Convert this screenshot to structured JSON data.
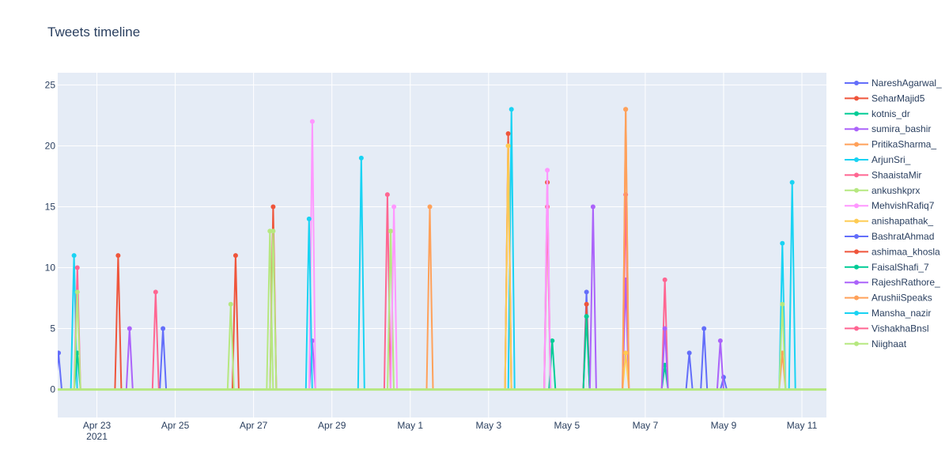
{
  "chart_data": {
    "type": "line",
    "title": "Tweets timeline",
    "xlabel": "",
    "ylabel": "",
    "x_axis": {
      "type": "date",
      "range": [
        "2021-04-22",
        "2021-05-11 15:00"
      ],
      "ticks": [
        {
          "date": "2021-04-23",
          "label": "Apr 23",
          "sublabel": "2021"
        },
        {
          "date": "2021-04-25",
          "label": "Apr 25"
        },
        {
          "date": "2021-04-27",
          "label": "Apr 27"
        },
        {
          "date": "2021-04-29",
          "label": "Apr 29"
        },
        {
          "date": "2021-05-01",
          "label": "May 1"
        },
        {
          "date": "2021-05-03",
          "label": "May 3"
        },
        {
          "date": "2021-05-05",
          "label": "May 5"
        },
        {
          "date": "2021-05-07",
          "label": "May 7"
        },
        {
          "date": "2021-05-09",
          "label": "May 9"
        },
        {
          "date": "2021-05-11",
          "label": "May 11"
        }
      ]
    },
    "y_axis": {
      "range": [
        -2.3,
        26
      ],
      "ticks": [
        0,
        5,
        10,
        15,
        20,
        25
      ]
    },
    "grid": true,
    "legend": "right",
    "series": [
      {
        "name": "NareshAgarwal_",
        "color": "#636efa",
        "peaks": [
          [
            "2021-04-22 00:30",
            3
          ],
          [
            "2021-04-24 16:30",
            5
          ],
          [
            "2021-05-08 03:00",
            3
          ],
          [
            "2021-05-09 00:00",
            1
          ]
        ]
      },
      {
        "name": "SeharMajid5",
        "color": "#ef553b",
        "peaks": [
          [
            "2021-04-23 13:00",
            11
          ],
          [
            "2021-04-26 13:00",
            11
          ],
          [
            "2021-05-03 12:00",
            21
          ],
          [
            "2021-05-04 12:00",
            17
          ]
        ]
      },
      {
        "name": "kotnis_dr",
        "color": "#00cc96",
        "peaks": [
          [
            "2021-05-04 15:00",
            4
          ],
          [
            "2021-05-07 12:00",
            2
          ]
        ]
      },
      {
        "name": "sumira_bashir",
        "color": "#ab63fa",
        "peaks": [
          [
            "2021-04-23 20:00",
            5
          ],
          [
            "2021-04-28 12:00",
            4
          ],
          [
            "2021-05-06 12:00",
            9
          ],
          [
            "2021-05-08 22:00",
            4
          ]
        ]
      },
      {
        "name": "PritikaSharma_",
        "color": "#ffa15a",
        "peaks": [
          [
            "2021-05-03 12:00",
            20
          ],
          [
            "2021-05-06 12:00",
            23
          ],
          [
            "2021-05-01 12:00",
            15
          ]
        ]
      },
      {
        "name": "ArjunSri_",
        "color": "#19d3f3",
        "peaks": [
          [
            "2021-04-22 10:00",
            11
          ],
          [
            "2021-04-29 18:00",
            19
          ],
          [
            "2021-05-03 14:00",
            23
          ],
          [
            "2021-05-10 18:00",
            17
          ]
        ]
      },
      {
        "name": "ShaaistaMir",
        "color": "#ff6692",
        "peaks": [
          [
            "2021-04-30 10:00",
            16
          ],
          [
            "2021-05-06 12:00",
            16
          ],
          [
            "2021-05-04 12:00",
            15
          ],
          [
            "2021-05-07 12:00",
            9
          ]
        ]
      },
      {
        "name": "ankushkprx",
        "color": "#b6e880",
        "peaks": [
          [
            "2021-04-26 10:00",
            7
          ],
          [
            "2021-04-27 10:00",
            13
          ],
          [
            "2021-04-30 12:00",
            13
          ]
        ]
      },
      {
        "name": "MehvishRafiq7",
        "color": "#ff97ff",
        "peaks": [
          [
            "2021-04-28 12:00",
            22
          ],
          [
            "2021-04-30 14:00",
            15
          ],
          [
            "2021-05-04 12:00",
            18
          ]
        ]
      },
      {
        "name": "anishapathak_",
        "color": "#fecb52",
        "peaks": [
          [
            "2021-05-03 12:00",
            20
          ],
          [
            "2021-05-06 12:00",
            3
          ]
        ]
      },
      {
        "name": "BashratAhmad",
        "color": "#636efa",
        "peaks": [
          [
            "2021-05-05 12:00",
            8
          ],
          [
            "2021-05-08 12:00",
            5
          ]
        ]
      },
      {
        "name": "ashimaa_khosla",
        "color": "#ef553b",
        "peaks": [
          [
            "2021-04-27 12:00",
            15
          ],
          [
            "2021-05-05 12:00",
            7
          ]
        ]
      },
      {
        "name": "FaisalShafi_7",
        "color": "#00cc96",
        "peaks": [
          [
            "2021-04-22 12:00",
            3
          ],
          [
            "2021-05-05 12:00",
            6
          ]
        ]
      },
      {
        "name": "RajeshRathore_",
        "color": "#ab63fa",
        "peaks": [
          [
            "2021-05-05 16:00",
            15
          ],
          [
            "2021-05-07 12:00",
            5
          ]
        ]
      },
      {
        "name": "ArushiiSpeaks",
        "color": "#ffa15a",
        "peaks": [
          [
            "2021-05-06 12:00",
            23
          ],
          [
            "2021-05-10 12:00",
            3
          ]
        ]
      },
      {
        "name": "Mansha_nazir",
        "color": "#19d3f3",
        "peaks": [
          [
            "2021-04-28 10:00",
            14
          ],
          [
            "2021-05-10 12:00",
            12
          ]
        ]
      },
      {
        "name": "VishakhaBnsl",
        "color": "#ff6692",
        "peaks": [
          [
            "2021-04-22 12:00",
            10
          ],
          [
            "2021-04-24 12:00",
            8
          ]
        ]
      },
      {
        "name": "Niighaat",
        "color": "#b6e880",
        "peaks": [
          [
            "2021-04-22 12:00",
            8
          ],
          [
            "2021-04-27 12:00",
            13
          ],
          [
            "2021-05-10 12:00",
            7
          ]
        ]
      }
    ]
  }
}
